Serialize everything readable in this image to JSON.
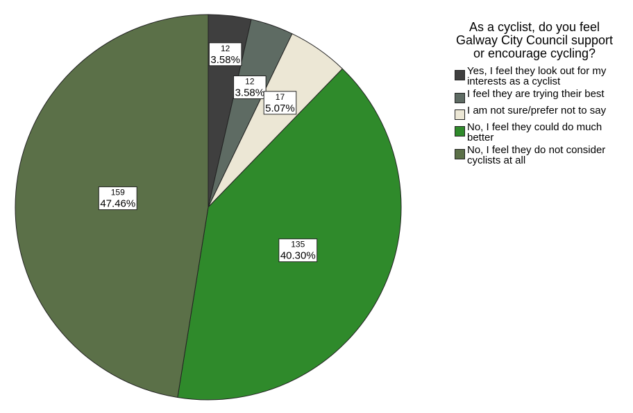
{
  "chart_data": {
    "type": "pie",
    "legend_title": "As a cyclist, do you feel Galway City Council support or encourage cycling?",
    "categories": [
      "Yes, I feel they look out for my interests as a cyclist",
      "I feel they are trying their best",
      "I am not sure/prefer not to say",
      "No, I feel they could do much better",
      "No, I feel they do not consider cyclists at all"
    ],
    "values": [
      12,
      12,
      17,
      135,
      159
    ],
    "percents": [
      3.58,
      3.58,
      5.07,
      40.3,
      47.46
    ],
    "percent_labels": [
      "3.58%",
      "3.58%",
      "5.07%",
      "40.30%",
      "47.46%"
    ],
    "colors": [
      "#3f3f3f",
      "#5e6b63",
      "#ece7d5",
      "#2f8a2b",
      "#5b7048"
    ],
    "legend": "right"
  }
}
